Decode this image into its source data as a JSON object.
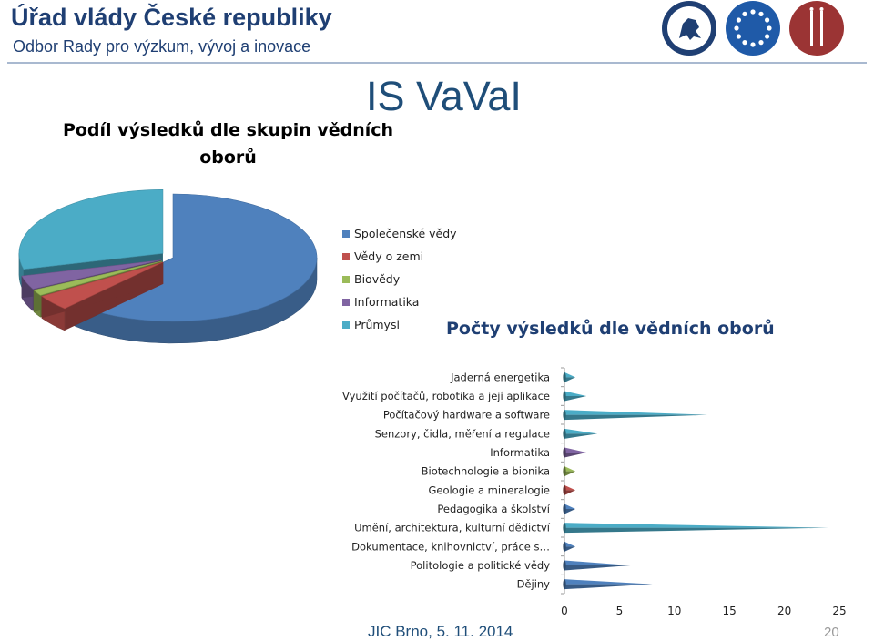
{
  "header": {
    "title": "Úřad vlády České republiky",
    "subtitle": "Odbor Rady pro výzkum, vývoj a inovace",
    "logos": [
      "lion-emblem-icon",
      "eu-stars-icon",
      "council-ii-icon"
    ]
  },
  "main_title": "IS VaVaI",
  "footer": {
    "text": "JIC Brno, 5. 11. 2014",
    "page": "20"
  },
  "colors": {
    "header_text": "#1f3f73",
    "title_blue": "#1f4e79",
    "spolecenske": "#4f81bd",
    "vedy_o_zemi": "#c0504d",
    "biovedy": "#9bbb59",
    "informatika": "#8064a2",
    "prumysl": "#4bacc6"
  },
  "chart_data": [
    {
      "type": "pie",
      "title_lines": [
        "Podíl výsledků dle skupin vědních",
        "oborů"
      ],
      "categories": [
        "Společenské vědy",
        "Vědy o zemi",
        "Biovědy",
        "Informatika",
        "Průmysl"
      ],
      "values": [
        62,
        4,
        1.5,
        3.5,
        29
      ],
      "colors": [
        "#4f81bd",
        "#c0504d",
        "#9bbb59",
        "#8064a2",
        "#4bacc6"
      ],
      "legend_position": "right"
    },
    {
      "type": "bar",
      "orientation": "horizontal",
      "title": "Počty výsledků dle vědních oborů",
      "categories": [
        "Jaderná energetika",
        "Využití počítačů, robotika a její aplikace",
        "Počítačový hardware a software",
        "Senzory, čidla, měření a regulace",
        "Informatika",
        "Biotechnologie a bionika",
        "Geologie a mineralogie",
        "Pedagogika a školství",
        "Umění, architektura, kulturní dědictví",
        "Dokumentace, knihovnictví, práce s…",
        "Politologie a politické vědy",
        "Dějiny"
      ],
      "values": [
        1,
        2,
        13,
        3,
        2,
        1,
        1,
        1,
        24,
        1,
        6,
        8
      ],
      "colors": [
        "#4bacc6",
        "#4bacc6",
        "#4bacc6",
        "#4bacc6",
        "#8064a2",
        "#9bbb59",
        "#c0504d",
        "#4f81bd",
        "#4bacc6",
        "#4f81bd",
        "#4f81bd",
        "#4f81bd"
      ],
      "x_ticks": [
        0,
        5,
        10,
        15,
        20,
        25
      ],
      "xlim": [
        0,
        25
      ]
    }
  ]
}
